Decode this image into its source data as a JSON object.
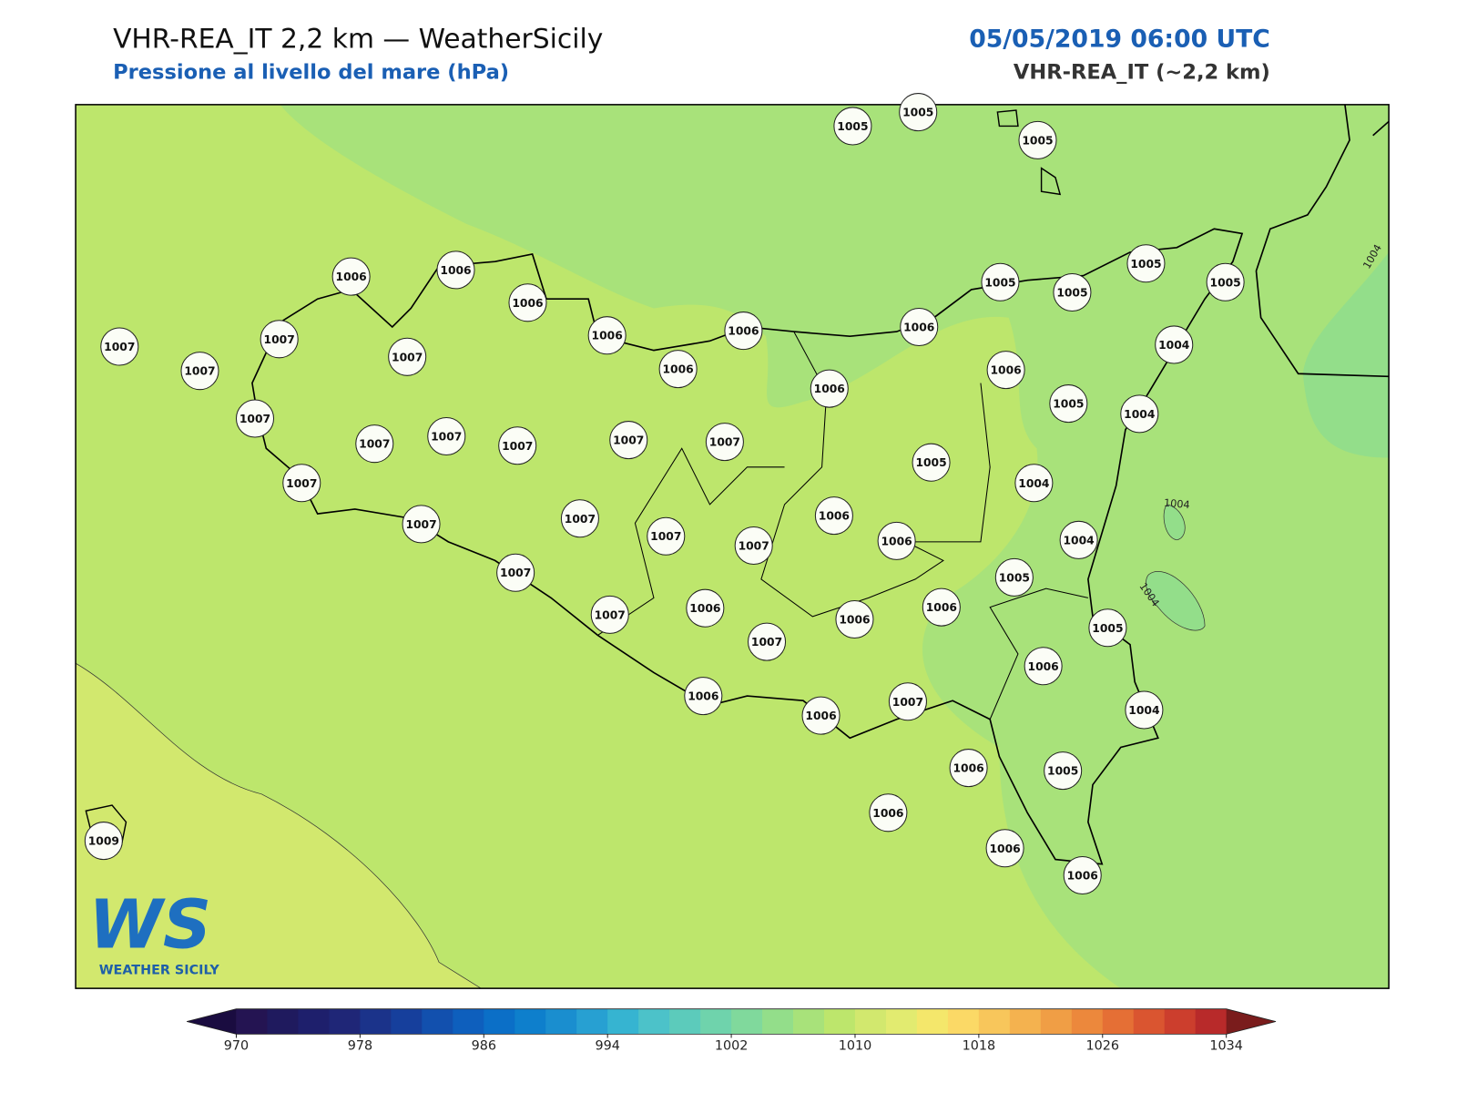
{
  "header": {
    "title": "VHR-REA_IT 2,2 km — WeatherSicily",
    "subtitle": "Pressione al livello del mare (hPa)",
    "datetime": "05/05/2019 06:00 UTC",
    "model": "VHR-REA_IT (~2,2 km)"
  },
  "stations": [
    1005,
    1005,
    1005,
    1006,
    1006,
    1006,
    1006,
    1006,
    1006,
    1006,
    1005,
    1005,
    1005,
    1005,
    1004,
    1007,
    1007,
    1007,
    1007,
    1007,
    1007,
    1007,
    1007,
    1007,
    1007,
    1006,
    1006,
    1005,
    1004,
    1007,
    1007,
    1007,
    1007,
    1007,
    1006,
    1005,
    1004,
    1006,
    1004,
    1007,
    1007,
    1006,
    1007,
    1006,
    1006,
    1005,
    1005,
    1006,
    1006,
    1006,
    1007,
    1004,
    1006,
    1005,
    1006,
    1006,
    1006,
    1009
  ],
  "contour_labels": [
    1004,
    1004,
    1004
  ],
  "colorbar": {
    "lim": [
      970,
      1034
    ],
    "step": 2,
    "ticks": [
      970,
      978,
      986,
      994,
      1002,
      1010,
      1018,
      1026,
      1034
    ],
    "colors": [
      "#241452",
      "#1f1a5e",
      "#1e1f6c",
      "#1f2677",
      "#1b338a",
      "#163f9c",
      "#1250ae",
      "#0e5fbd",
      "#0b6fc7",
      "#0e7fcc",
      "#1a8ecf",
      "#27a0d2",
      "#36b4d1",
      "#4cc2c9",
      "#5ccbbb",
      "#6fd3ac",
      "#80d99c",
      "#93de8a",
      "#a8e27a",
      "#bde66c",
      "#d2e86e",
      "#e2eb70",
      "#f4e76b",
      "#fbd966",
      "#f8c65b",
      "#f4b24f",
      "#f09e45",
      "#ec883c",
      "#e56f35",
      "#da5530",
      "#cc3e2d",
      "#b82a2a"
    ],
    "under": "#1a0c40",
    "over": "#7a1c1c"
  },
  "logo": {
    "mark": "WS",
    "name": "WEATHER SICILY"
  }
}
